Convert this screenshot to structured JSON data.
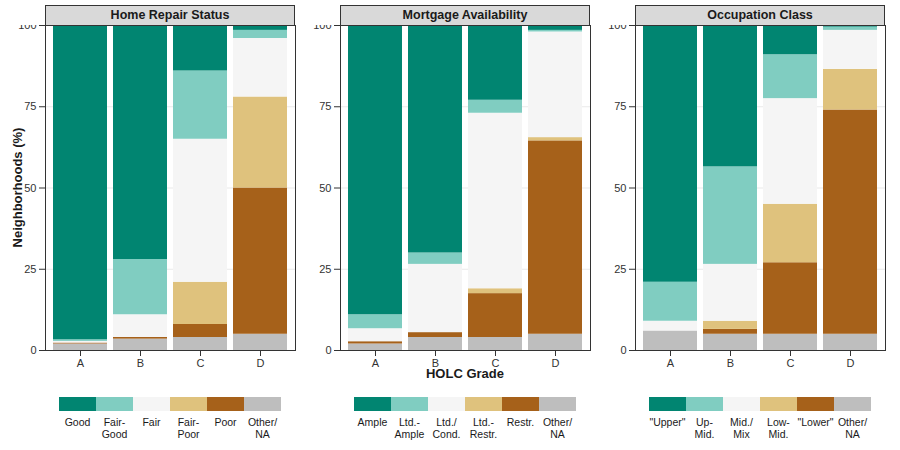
{
  "chart_data": [
    {
      "type": "bar",
      "title": "Home Repair Status",
      "y_label": "Neighborhoods (%)",
      "categories": [
        "A",
        "B",
        "C",
        "D"
      ],
      "stacked": true,
      "grid": true,
      "legend": "bottom",
      "ylim": [
        0,
        100
      ],
      "yticks": [
        0,
        25,
        50,
        75,
        100
      ],
      "series": [
        {
          "name": "Good",
          "color": "#018571",
          "values": [
            96.7,
            72,
            14,
            1.5
          ]
        },
        {
          "name": "Fair-\nGood",
          "color": "#80cdc1",
          "values": [
            0.5,
            17,
            21,
            2.5
          ]
        },
        {
          "name": "Fair",
          "color": "#f5f5f5",
          "values": [
            0.5,
            7,
            44,
            18
          ]
        },
        {
          "name": "Fair-\nPoor",
          "color": "#dfc27d",
          "values": [
            0,
            0,
            13,
            28
          ]
        },
        {
          "name": "Poor",
          "color": "#a6611a",
          "values": [
            0.3,
            0.5,
            4,
            45
          ]
        },
        {
          "name": "Other/\nNA",
          "color": "#bebebe",
          "values": [
            2,
            3.5,
            4,
            5
          ]
        }
      ]
    },
    {
      "type": "bar",
      "title": "Mortgage Availability",
      "x_label": "HOLC Grade",
      "categories": [
        "A",
        "B",
        "C",
        "D"
      ],
      "stacked": true,
      "grid": true,
      "legend": "bottom",
      "ylim": [
        0,
        100
      ],
      "yticks": [
        0,
        25,
        50,
        75,
        100
      ],
      "series": [
        {
          "name": "Ample",
          "color": "#018571",
          "values": [
            89,
            70,
            23,
            1.5
          ]
        },
        {
          "name": "Ltd.-\nAmple",
          "color": "#80cdc1",
          "values": [
            4.3,
            3.5,
            4,
            0.5
          ]
        },
        {
          "name": "Ltd./\nCond.",
          "color": "#f5f5f5",
          "values": [
            4,
            21,
            54,
            32.5
          ]
        },
        {
          "name": "Ltd.-\nRestr.",
          "color": "#dfc27d",
          "values": [
            0,
            0,
            1.5,
            1
          ]
        },
        {
          "name": "Restr.",
          "color": "#a6611a",
          "values": [
            0.7,
            1.5,
            13.5,
            59.5
          ]
        },
        {
          "name": "Other/\nNA",
          "color": "#bebebe",
          "values": [
            2,
            4,
            4,
            5
          ]
        }
      ]
    },
    {
      "type": "bar",
      "title": "Occupation Class",
      "categories": [
        "A",
        "B",
        "C",
        "D"
      ],
      "stacked": true,
      "grid": true,
      "legend": "bottom",
      "ylim": [
        0,
        100
      ],
      "yticks": [
        0,
        25,
        50,
        75,
        100
      ],
      "series": [
        {
          "name": "\"Upper\"",
          "color": "#018571",
          "values": [
            79,
            43.5,
            9,
            0.5
          ]
        },
        {
          "name": "Up-\nMid.",
          "color": "#80cdc1",
          "values": [
            12,
            30,
            13.5,
            1
          ]
        },
        {
          "name": "Mid./\nMix",
          "color": "#f5f5f5",
          "values": [
            3,
            17.5,
            32.5,
            12
          ]
        },
        {
          "name": "Low-\nMid.",
          "color": "#dfc27d",
          "values": [
            0,
            2.5,
            18,
            12.5
          ]
        },
        {
          "name": "\"Lower\"",
          "color": "#a6611a",
          "values": [
            0,
            1.5,
            22,
            69
          ]
        },
        {
          "name": "Other/\nNA",
          "color": "#bebebe",
          "values": [
            6,
            5,
            5,
            5
          ]
        }
      ]
    }
  ]
}
